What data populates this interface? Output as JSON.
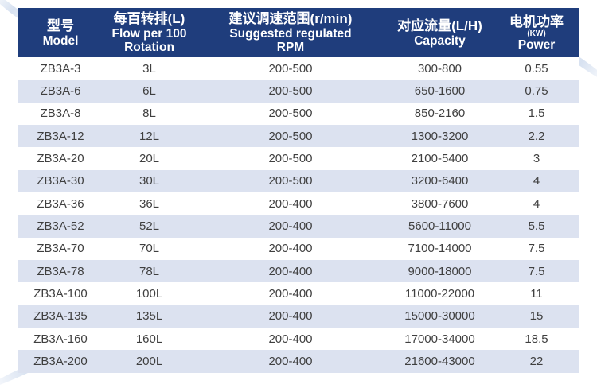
{
  "page": {
    "background": "#ffffff"
  },
  "table": {
    "header": [
      {
        "lines": [
          "型号",
          "Model"
        ]
      },
      {
        "lines": [
          "每百转排(L)",
          "Flow per 100",
          "Rotation"
        ]
      },
      {
        "lines": [
          "建议调速范围(r/min)",
          "Suggested regulated",
          "RPM"
        ]
      },
      {
        "lines": [
          "对应流量(L/H)",
          "Capacity"
        ]
      },
      {
        "lines": [
          "电机功率",
          "(KW)",
          "Power"
        ],
        "small_line_index": 1
      }
    ],
    "rows": [
      [
        "ZB3A-3",
        "3L",
        "200-500",
        "300-800",
        "0.55"
      ],
      [
        "ZB3A-6",
        "6L",
        "200-500",
        "650-1600",
        "0.75"
      ],
      [
        "ZB3A-8",
        "8L",
        "200-500",
        "850-2160",
        "1.5"
      ],
      [
        "ZB3A-12",
        "12L",
        "200-500",
        "1300-3200",
        "2.2"
      ],
      [
        "ZB3A-20",
        "20L",
        "200-500",
        "2100-5400",
        "3"
      ],
      [
        "ZB3A-30",
        "30L",
        "200-500",
        "3200-6400",
        "4"
      ],
      [
        "ZB3A-36",
        "36L",
        "200-400",
        "3800-7600",
        "4"
      ],
      [
        "ZB3A-52",
        "52L",
        "200-400",
        "5600-11000",
        "5.5"
      ],
      [
        "ZB3A-70",
        "70L",
        "200-400",
        "7100-14000",
        "7.5"
      ],
      [
        "ZB3A-78",
        "78L",
        "200-400",
        "9000-18000",
        "7.5"
      ],
      [
        "ZB3A-100",
        "100L",
        "200-400",
        "11000-22000",
        "11"
      ],
      [
        "ZB3A-135",
        "135L",
        "200-400",
        "15000-30000",
        "15"
      ],
      [
        "ZB3A-160",
        "160L",
        "200-400",
        "17000-34000",
        "18.5"
      ],
      [
        "ZB3A-200",
        "200L",
        "200-400",
        "21600-43000",
        "22"
      ]
    ],
    "colors": {
      "header_bg": "#1f3d7c",
      "header_text": "#ffffff",
      "stripe_bg": "#dce2f0",
      "row_text": "#3f3f3f"
    }
  }
}
